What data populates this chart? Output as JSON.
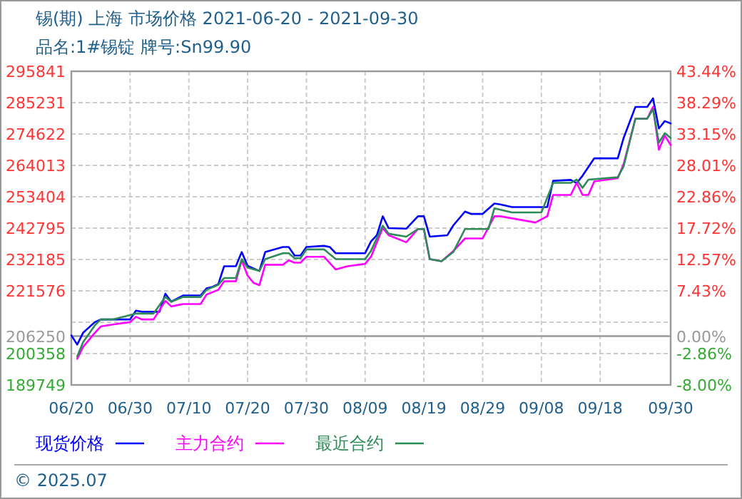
{
  "chart_data": {
    "type": "line",
    "title": "锡(期) 上海 市场价格 2021-06-20 - 2021-09-30",
    "subtitle": "品名:1#锡锭 牌号:Sn99.90",
    "annotations": [
      "© 2025.07"
    ],
    "xlim": [
      "2021-06-20",
      "2021-09-30"
    ],
    "xticks": [
      {
        "value": "2021-06-20",
        "label": "06/20"
      },
      {
        "value": "2021-06-30",
        "label": "06/30"
      },
      {
        "value": "2021-07-10",
        "label": "07/10"
      },
      {
        "value": "2021-07-20",
        "label": "07/20"
      },
      {
        "value": "2021-07-30",
        "label": "07/30"
      },
      {
        "value": "2021-08-09",
        "label": "08/09"
      },
      {
        "value": "2021-08-19",
        "label": "08/19"
      },
      {
        "value": "2021-08-29",
        "label": "08/29"
      },
      {
        "value": "2021-09-08",
        "label": "09/08"
      },
      {
        "value": "2021-09-18",
        "label": "09/18"
      },
      {
        "value": "2021-09-30",
        "label": "09/30"
      }
    ],
    "ylim": [
      189749,
      295841
    ],
    "yticks": [
      189749,
      200358,
      206250,
      {
        "value": 210967,
        "label": null
      },
      221576,
      232185,
      242795,
      253404,
      264013,
      274622,
      285231,
      295841
    ],
    "y2lim": [
      -8,
      43.44
    ],
    "y2ticks": [
      {
        "value": -8,
        "label": "-8.00%"
      },
      {
        "value": -2.86,
        "label": "-2.86%"
      },
      {
        "value": 0,
        "label": "0.00%"
      },
      {
        "value": 7.43,
        "label": "7.43%"
      },
      {
        "value": 12.57,
        "label": "12.57%"
      },
      {
        "value": 17.72,
        "label": "17.72%"
      },
      {
        "value": 22.86,
        "label": "22.86%"
      },
      {
        "value": 28.01,
        "label": "28.01%"
      },
      {
        "value": 33.15,
        "label": "33.15%"
      },
      {
        "value": 38.29,
        "label": "38.29%"
      },
      {
        "value": 43.44,
        "label": "43.44%"
      }
    ],
    "ref_lines": [
      {
        "axis": "y",
        "value": 206250,
        "color": "#999999",
        "line_style": "solid"
      }
    ],
    "grid": true,
    "legend": "bottom",
    "marker": "none",
    "line_style": "solid",
    "series": [
      {
        "name": "现货价格",
        "color": "#0000ff",
        "x": [
          "2021-06-20",
          "2021-06-21",
          "2021-06-22",
          "2021-06-24",
          "2021-06-25",
          "2021-06-30",
          "2021-07-01",
          "2021-07-02",
          "2021-07-05",
          "2021-07-06",
          "2021-07-07",
          "2021-07-09",
          "2021-07-12",
          "2021-07-13",
          "2021-07-14",
          "2021-07-15",
          "2021-07-16",
          "2021-07-18",
          "2021-07-19",
          "2021-07-20",
          "2021-07-22",
          "2021-07-23",
          "2021-07-26",
          "2021-07-27",
          "2021-07-28",
          "2021-07-29",
          "2021-07-30",
          "2021-08-02",
          "2021-08-03",
          "2021-08-04",
          "2021-08-09",
          "2021-08-10",
          "2021-08-11",
          "2021-08-12",
          "2021-08-13",
          "2021-08-16",
          "2021-08-18",
          "2021-08-19",
          "2021-08-20",
          "2021-08-23",
          "2021-08-24",
          "2021-08-26",
          "2021-08-27",
          "2021-08-29",
          "2021-08-31",
          "2021-09-01",
          "2021-09-03",
          "2021-09-09",
          "2021-09-10",
          "2021-09-13",
          "2021-09-14",
          "2021-09-15",
          "2021-09-17",
          "2021-09-21",
          "2021-09-22",
          "2021-09-24",
          "2021-09-26",
          "2021-09-27",
          "2021-09-28",
          "2021-09-29",
          "2021-09-30"
        ],
        "values": [
          206500,
          203400,
          207400,
          211000,
          211900,
          211900,
          214900,
          214500,
          214500,
          220600,
          217900,
          220000,
          220000,
          222400,
          222900,
          223800,
          229900,
          229900,
          234700,
          230000,
          228300,
          234700,
          236400,
          236400,
          233500,
          233500,
          236400,
          236800,
          236400,
          234300,
          234300,
          238300,
          240400,
          246800,
          242800,
          242600,
          246800,
          246800,
          239900,
          240400,
          243700,
          248400,
          247600,
          247600,
          251100,
          250800,
          249900,
          249900,
          258800,
          259100,
          258000,
          260500,
          266400,
          266400,
          273300,
          283800,
          283800,
          286700,
          276500,
          279000,
          278200
        ]
      },
      {
        "name": "主力合约",
        "color": "#ff00ff",
        "x": [
          "2021-06-21",
          "2021-06-22",
          "2021-06-24",
          "2021-06-25",
          "2021-06-27",
          "2021-06-30",
          "2021-07-01",
          "2021-07-02",
          "2021-07-04",
          "2021-07-06",
          "2021-07-07",
          "2021-07-09",
          "2021-07-12",
          "2021-07-13",
          "2021-07-15",
          "2021-07-16",
          "2021-07-18",
          "2021-07-19",
          "2021-07-20",
          "2021-07-21",
          "2021-07-22",
          "2021-07-23",
          "2021-07-26",
          "2021-07-27",
          "2021-07-28",
          "2021-07-29",
          "2021-07-30",
          "2021-08-02",
          "2021-08-04",
          "2021-08-06",
          "2021-08-09",
          "2021-08-10",
          "2021-08-12",
          "2021-08-13",
          "2021-08-16",
          "2021-08-18",
          "2021-08-19",
          "2021-08-20",
          "2021-08-22",
          "2021-08-24",
          "2021-08-26",
          "2021-08-29",
          "2021-08-31",
          "2021-09-01",
          "2021-09-07",
          "2021-09-09",
          "2021-09-10",
          "2021-09-13",
          "2021-09-14",
          "2021-09-15",
          "2021-09-16",
          "2021-09-17",
          "2021-09-21",
          "2021-09-22",
          "2021-09-24",
          "2021-09-26",
          "2021-09-27",
          "2021-09-28",
          "2021-09-29",
          "2021-09-30"
        ],
        "values": [
          198600,
          202600,
          207400,
          209500,
          210200,
          211000,
          212800,
          211900,
          211900,
          218200,
          216300,
          217100,
          217100,
          220300,
          221900,
          224800,
          224800,
          231900,
          226700,
          224300,
          223500,
          230400,
          230400,
          231900,
          231100,
          231100,
          233100,
          233100,
          228800,
          229900,
          230700,
          233100,
          242800,
          240400,
          238000,
          242500,
          242500,
          232300,
          231600,
          235000,
          239300,
          239300,
          246800,
          246800,
          244700,
          246800,
          254000,
          254000,
          258100,
          254000,
          254000,
          258600,
          259700,
          264500,
          279800,
          279800,
          283800,
          269300,
          274100,
          270900
        ]
      },
      {
        "name": "最近合约",
        "color": "#2e8b57",
        "x": [
          "2021-06-21",
          "2021-06-22",
          "2021-06-24",
          "2021-06-25",
          "2021-06-27",
          "2021-06-30",
          "2021-07-01",
          "2021-07-04",
          "2021-07-06",
          "2021-07-07",
          "2021-07-09",
          "2021-07-12",
          "2021-07-13",
          "2021-07-15",
          "2021-07-16",
          "2021-07-18",
          "2021-07-19",
          "2021-07-20",
          "2021-07-22",
          "2021-07-23",
          "2021-07-26",
          "2021-07-27",
          "2021-07-28",
          "2021-07-29",
          "2021-07-30",
          "2021-08-02",
          "2021-08-04",
          "2021-08-09",
          "2021-08-10",
          "2021-08-12",
          "2021-08-13",
          "2021-08-16",
          "2021-08-18",
          "2021-08-19",
          "2021-08-20",
          "2021-08-22",
          "2021-08-24",
          "2021-08-26",
          "2021-08-30",
          "2021-08-31",
          "2021-09-03",
          "2021-09-08",
          "2021-09-10",
          "2021-09-13",
          "2021-09-14",
          "2021-09-15",
          "2021-09-16",
          "2021-09-21",
          "2021-09-22",
          "2021-09-24",
          "2021-09-26",
          "2021-09-27",
          "2021-09-28",
          "2021-09-29",
          "2021-09-30"
        ],
        "values": [
          199400,
          204200,
          209900,
          211900,
          211900,
          213400,
          213900,
          213900,
          219500,
          217900,
          219500,
          219500,
          221900,
          223600,
          225900,
          225900,
          232300,
          229400,
          228300,
          232300,
          234300,
          234300,
          232600,
          232600,
          235600,
          235600,
          232300,
          232300,
          235100,
          243600,
          240900,
          239900,
          242500,
          242500,
          232300,
          231600,
          234700,
          242500,
          242500,
          249500,
          248100,
          248100,
          258100,
          258100,
          259200,
          256400,
          259200,
          260000,
          263700,
          279800,
          279800,
          283000,
          271700,
          274900,
          273300
        ]
      }
    ]
  }
}
